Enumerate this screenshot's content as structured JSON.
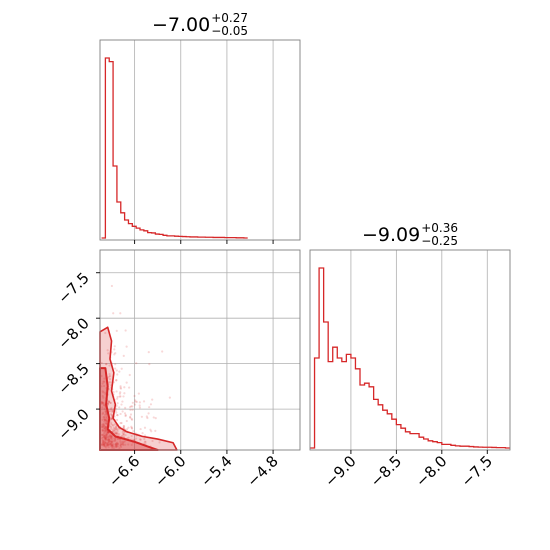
{
  "chart_data": [
    {
      "type": "histogram",
      "panel": "top-left",
      "title": {
        "main": "−7.00",
        "upper": "+0.27",
        "lower": "−0.05"
      },
      "xlim": [
        -7.05,
        -4.45
      ],
      "xgrid": [
        -6.6,
        -6.0,
        -5.4,
        -4.8
      ],
      "bin_edges": [
        -7.03,
        -6.98,
        -6.93,
        -6.88,
        -6.83,
        -6.78,
        -6.73,
        -6.68,
        -6.63,
        -6.58,
        -6.53,
        -6.48,
        -6.43,
        -6.38,
        -6.33,
        -6.28,
        -6.23,
        -6.18,
        -6.13,
        -6.08,
        -6.03,
        -5.98,
        -5.93,
        -5.88,
        -5.83,
        -5.78,
        -5.73,
        -5.68,
        -5.63,
        -5.58,
        -5.53,
        -5.48,
        -5.43,
        -5.38,
        -5.33,
        -5.28,
        -5.23,
        -5.18,
        -5.13
      ],
      "counts": [
        0.0,
        1.0,
        0.98,
        0.4,
        0.2,
        0.14,
        0.1,
        0.08,
        0.065,
        0.055,
        0.045,
        0.04,
        0.03,
        0.028,
        0.022,
        0.02,
        0.015,
        0.012,
        0.012,
        0.01,
        0.009,
        0.008,
        0.007,
        0.006,
        0.006,
        0.005,
        0.005,
        0.004,
        0.004,
        0.003,
        0.003,
        0.003,
        0.002,
        0.002,
        0.002,
        0.001,
        0.001,
        0.0
      ],
      "color": "#d62728"
    },
    {
      "type": "scatter",
      "panel": "bottom-left",
      "xlim": [
        -7.05,
        -4.45
      ],
      "ylim": [
        -9.45,
        -7.25
      ],
      "xticks": [
        -6.6,
        -6.0,
        -5.4,
        -4.8
      ],
      "xtick_labels": [
        "−6.6",
        "−6.0",
        "−5.4",
        "−4.8"
      ],
      "yticks": [
        -9.0,
        -8.5,
        -8.0,
        -7.5
      ],
      "ytick_labels": [
        "−9.0",
        "−8.5",
        "−8.0",
        "−7.5"
      ],
      "contours": [
        {
          "level": "outer",
          "points": [
            [
              -7.05,
              -8.15
            ],
            [
              -6.95,
              -8.1
            ],
            [
              -6.9,
              -8.25
            ],
            [
              -6.92,
              -8.45
            ],
            [
              -6.87,
              -8.6
            ],
            [
              -6.9,
              -8.8
            ],
            [
              -6.85,
              -8.95
            ],
            [
              -6.88,
              -9.1
            ],
            [
              -6.8,
              -9.2
            ],
            [
              -6.7,
              -9.25
            ],
            [
              -6.5,
              -9.3
            ],
            [
              -6.3,
              -9.33
            ],
            [
              -6.1,
              -9.37
            ],
            [
              -6.05,
              -9.45
            ],
            [
              -7.05,
              -9.45
            ]
          ]
        },
        {
          "level": "inner",
          "points": [
            [
              -7.05,
              -8.55
            ],
            [
              -6.98,
              -8.55
            ],
            [
              -6.95,
              -8.75
            ],
            [
              -6.97,
              -8.95
            ],
            [
              -6.93,
              -9.1
            ],
            [
              -6.95,
              -9.22
            ],
            [
              -6.85,
              -9.3
            ],
            [
              -6.6,
              -9.36
            ],
            [
              -6.4,
              -9.42
            ],
            [
              -6.3,
              -9.45
            ],
            [
              -7.05,
              -9.45
            ]
          ]
        }
      ],
      "color": "#d62728"
    },
    {
      "type": "histogram",
      "panel": "bottom-right",
      "title": {
        "main": "−9.09",
        "upper": "+0.36",
        "lower": "−0.25"
      },
      "xlim": [
        -9.45,
        -7.25
      ],
      "xticks": [
        -9.0,
        -8.5,
        -8.0,
        -7.5
      ],
      "xtick_labels": [
        "−9.0",
        "−8.5",
        "−8.0",
        "−7.5"
      ],
      "bin_edges": [
        -9.45,
        -9.4,
        -9.35,
        -9.3,
        -9.25,
        -9.2,
        -9.15,
        -9.1,
        -9.05,
        -9.0,
        -8.95,
        -8.9,
        -8.85,
        -8.8,
        -8.75,
        -8.7,
        -8.65,
        -8.6,
        -8.55,
        -8.5,
        -8.45,
        -8.4,
        -8.35,
        -8.3,
        -8.25,
        -8.2,
        -8.15,
        -8.1,
        -8.05,
        -8.0,
        -7.95,
        -7.9,
        -7.85,
        -7.8,
        -7.75,
        -7.7,
        -7.65,
        -7.6,
        -7.55,
        -7.5,
        -7.45,
        -7.4,
        -7.35,
        -7.3,
        -7.25
      ],
      "counts": [
        0.0,
        0.5,
        1.0,
        0.7,
        0.48,
        0.56,
        0.5,
        0.48,
        0.52,
        0.5,
        0.44,
        0.35,
        0.36,
        0.34,
        0.27,
        0.24,
        0.21,
        0.19,
        0.16,
        0.13,
        0.11,
        0.09,
        0.08,
        0.08,
        0.06,
        0.05,
        0.04,
        0.035,
        0.03,
        0.02,
        0.02,
        0.015,
        0.012,
        0.01,
        0.01,
        0.008,
        0.006,
        0.005,
        0.004,
        0.004,
        0.003,
        0.002,
        0.002,
        0.0
      ],
      "color": "#d62728"
    }
  ]
}
